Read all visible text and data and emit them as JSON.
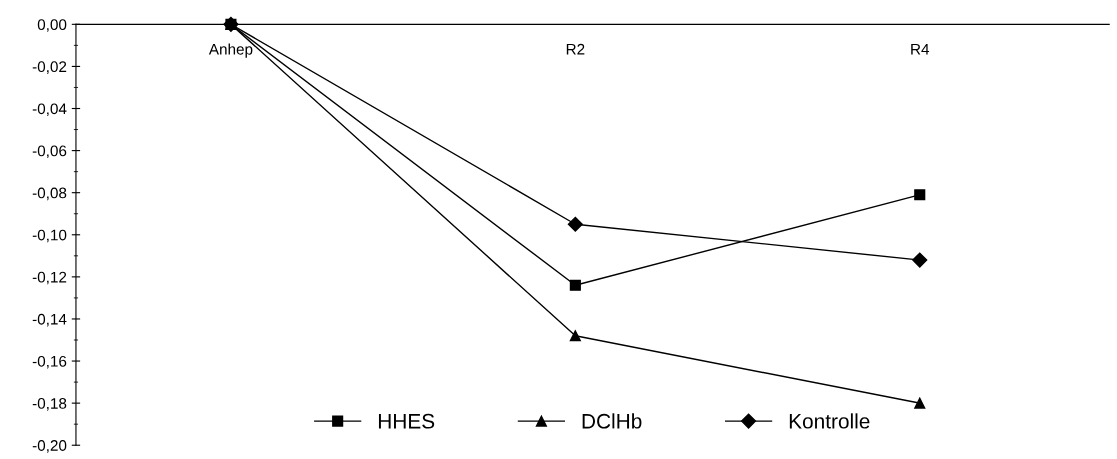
{
  "chart_data": {
    "type": "line",
    "categories": [
      "Anhep",
      "R2",
      "R4"
    ],
    "series": [
      {
        "name": "HHES",
        "color": "#000000",
        "marker": "square",
        "values": [
          0,
          -0.124,
          -0.081
        ]
      },
      {
        "name": "DClHb",
        "color": "#000000",
        "marker": "triangle",
        "values": [
          0,
          -0.148,
          -0.18
        ]
      },
      {
        "name": "Kontrolle",
        "color": "#000000",
        "marker": "diamond",
        "values": [
          0,
          -0.095,
          -0.112
        ]
      }
    ],
    "ylim": [
      -0.2,
      0
    ],
    "yticks": [
      {
        "value": 0,
        "label": "0,00"
      },
      {
        "value": -0.02,
        "label": "-0,02"
      },
      {
        "value": -0.04,
        "label": "-0,04"
      },
      {
        "value": -0.06,
        "label": "-0,06"
      },
      {
        "value": -0.08,
        "label": "-0,08"
      },
      {
        "value": -0.1,
        "label": "-0,10"
      },
      {
        "value": -0.12,
        "label": "-0,12"
      },
      {
        "value": -0.14,
        "label": "-0,14"
      },
      {
        "value": -0.16,
        "label": "-0,16"
      },
      {
        "value": -0.18,
        "label": "-0,18"
      },
      {
        "value": -0.2,
        "label": "-0,20"
      }
    ],
    "grid": false,
    "legend": "bottom",
    "line_style": "solid"
  }
}
